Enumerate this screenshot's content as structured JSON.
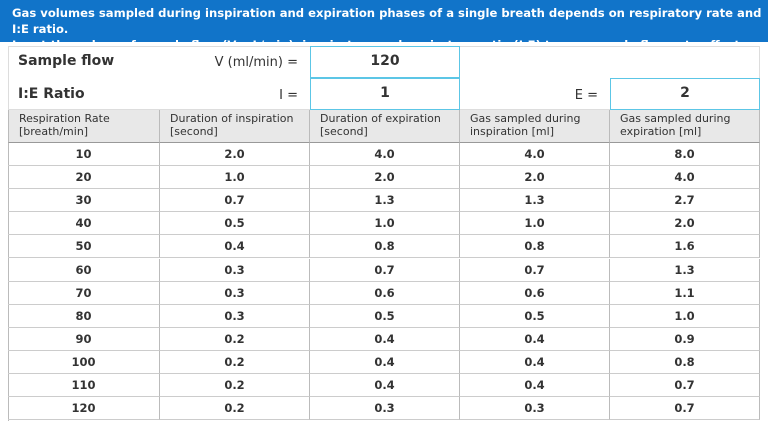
{
  "header": {
    "lines": [
      "Gas volumes sampled during inspiration and expiration phases of a single breath depends on respiratory rate and I:E ratio.",
      "Input the values of sample flow (V mL/min), inspiratory and expiratory ratio (I:E) to see sample flow rate effect."
    ]
  },
  "inputs": {
    "sample_flow_label": "Sample flow",
    "v_label": "V (ml/min) =",
    "v_value": "120",
    "ie_label": "I:E Ratio",
    "i_label": "I =",
    "i_value": "1",
    "e_label": "E =",
    "e_value": "2"
  },
  "table": {
    "columns": [
      [
        "Respiration Rate",
        "[breath/min]"
      ],
      [
        "Duration of inspiration",
        "[second]"
      ],
      [
        "Duration of expiration",
        "[second]"
      ],
      [
        "Gas sampled during",
        "inspiration [ml]"
      ],
      [
        "Gas sampled during",
        "expiration [ml]"
      ]
    ],
    "rows": [
      [
        "10",
        "2.0",
        "4.0",
        "4.0",
        "8.0"
      ],
      [
        "20",
        "1.0",
        "2.0",
        "2.0",
        "4.0"
      ],
      [
        "30",
        "0.7",
        "1.3",
        "1.3",
        "2.7"
      ],
      [
        "40",
        "0.5",
        "1.0",
        "1.0",
        "2.0"
      ],
      [
        "50",
        "0.4",
        "0.8",
        "0.8",
        "1.6"
      ],
      [
        "60",
        "0.3",
        "0.7",
        "0.7",
        "1.3"
      ],
      [
        "70",
        "0.3",
        "0.6",
        "0.6",
        "1.1"
      ],
      [
        "80",
        "0.3",
        "0.5",
        "0.5",
        "1.0"
      ],
      [
        "90",
        "0.2",
        "0.4",
        "0.4",
        "0.9"
      ],
      [
        "100",
        "0.2",
        "0.4",
        "0.4",
        "0.8"
      ],
      [
        "110",
        "0.2",
        "0.4",
        "0.4",
        "0.7"
      ],
      [
        "120",
        "0.2",
        "0.3",
        "0.3",
        "0.7"
      ]
    ]
  }
}
